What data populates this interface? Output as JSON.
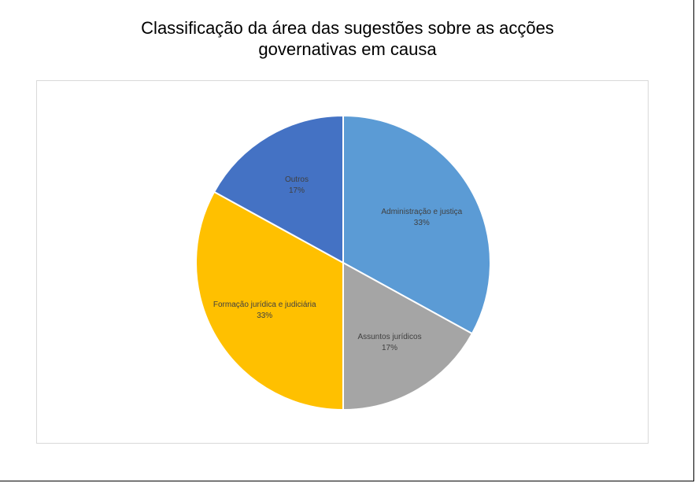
{
  "chart_data": {
    "type": "pie",
    "title_lines": [
      "Classificação da área das sugestões sobre as acções",
      "governativas em causa"
    ],
    "slices": [
      {
        "name": "Administração e justiça",
        "value": 33,
        "label": "33%",
        "color": "#5b9bd5"
      },
      {
        "name": "Assuntos jurídicos",
        "value": 17,
        "label": "17%",
        "color": "#a5a5a5"
      },
      {
        "name": "Formação jurídica e judiciária",
        "value": 33,
        "label": "33%",
        "color": "#ffc000"
      },
      {
        "name": "Outros",
        "value": 17,
        "label": "17%",
        "color": "#4472c4"
      }
    ],
    "legend": "none",
    "slice_border_color": "#ffffff"
  }
}
